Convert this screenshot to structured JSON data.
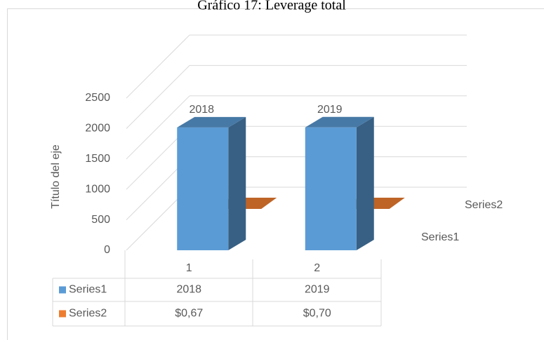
{
  "chart_data": {
    "type": "bar3d",
    "title": "Gráfico 17: Leverage total",
    "y_label": "Título del eje",
    "categories": [
      "1",
      "2"
    ],
    "series": [
      {
        "name": "Series1",
        "color": "#5b9bd5",
        "values": [
          2018,
          2019
        ]
      },
      {
        "name": "Series2",
        "color": "#ed7d31",
        "values": [
          0.67,
          0.7
        ],
        "value_labels": [
          "$0,67",
          "$0,70"
        ]
      }
    ],
    "ylim": [
      0,
      2500
    ],
    "yticks": [
      0,
      500,
      1000,
      1500,
      2000,
      2500
    ],
    "grid": true,
    "data_table": true
  }
}
